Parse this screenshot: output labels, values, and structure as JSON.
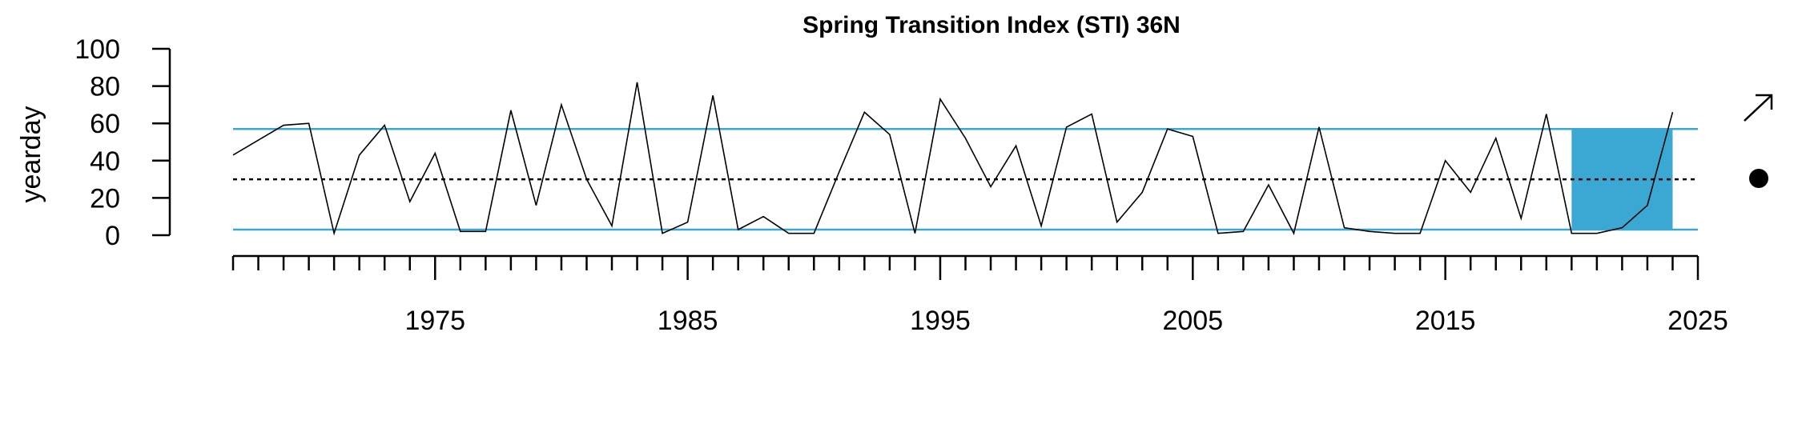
{
  "chart_data": {
    "type": "line",
    "title": "Spring Transition Index (STI) 36N",
    "xlabel": "",
    "ylabel": "yearday",
    "xlim": [
      1967,
      2025
    ],
    "ylim": [
      0,
      100
    ],
    "x_tick_labels": [
      "1975",
      "1985",
      "1995",
      "2005",
      "2015",
      "2025"
    ],
    "y_tick_labels": [
      "0",
      "20",
      "40",
      "60",
      "80",
      "100"
    ],
    "x_ticks": [
      1975,
      1985,
      1995,
      2005,
      2015,
      2025
    ],
    "y_ticks": [
      0,
      20,
      40,
      60,
      80,
      100
    ],
    "grid": false,
    "series": [
      {
        "x": [
          1967,
          1968,
          1969,
          1970,
          1971,
          1972,
          1973,
          1974,
          1975,
          1976,
          1977,
          1978,
          1979,
          1980,
          1981,
          1982,
          1983,
          1984,
          1985,
          1986,
          1987,
          1988,
          1989,
          1990,
          1991,
          1992,
          1993,
          1994,
          1995,
          1996,
          1997,
          1998,
          1999,
          2000,
          2001,
          2002,
          2003,
          2004,
          2005,
          2006,
          2007,
          2008,
          2009,
          2010,
          2011,
          2012,
          2013,
          2014,
          2015,
          2016,
          2017,
          2018,
          2019,
          2020,
          2021,
          2022,
          2023,
          2024
        ],
        "values": [
          43,
          51,
          59,
          60,
          1,
          43,
          59,
          18,
          44,
          2,
          2,
          67,
          16,
          70,
          30,
          5,
          82,
          1,
          7,
          75,
          3,
          10,
          1,
          1,
          34,
          66,
          54,
          1,
          73,
          52,
          26,
          48,
          5,
          58,
          65,
          7,
          23,
          57,
          53,
          1,
          2,
          27,
          1,
          58,
          4,
          2,
          1,
          1,
          40,
          23,
          52,
          9,
          65,
          1,
          1,
          4,
          16,
          66
        ],
        "color": "#000000"
      }
    ],
    "reference_lines": {
      "mean": 30,
      "upper": 57,
      "lower": 3,
      "mean_style": "dotted",
      "band_color": "#3ba8d4"
    },
    "highlight": {
      "x_start": 2020,
      "x_end": 2024,
      "color": "#3ba8d4"
    },
    "trend_indicator": {
      "long_term": "arrow-up-right-icon",
      "recent": "dot-icon"
    }
  }
}
